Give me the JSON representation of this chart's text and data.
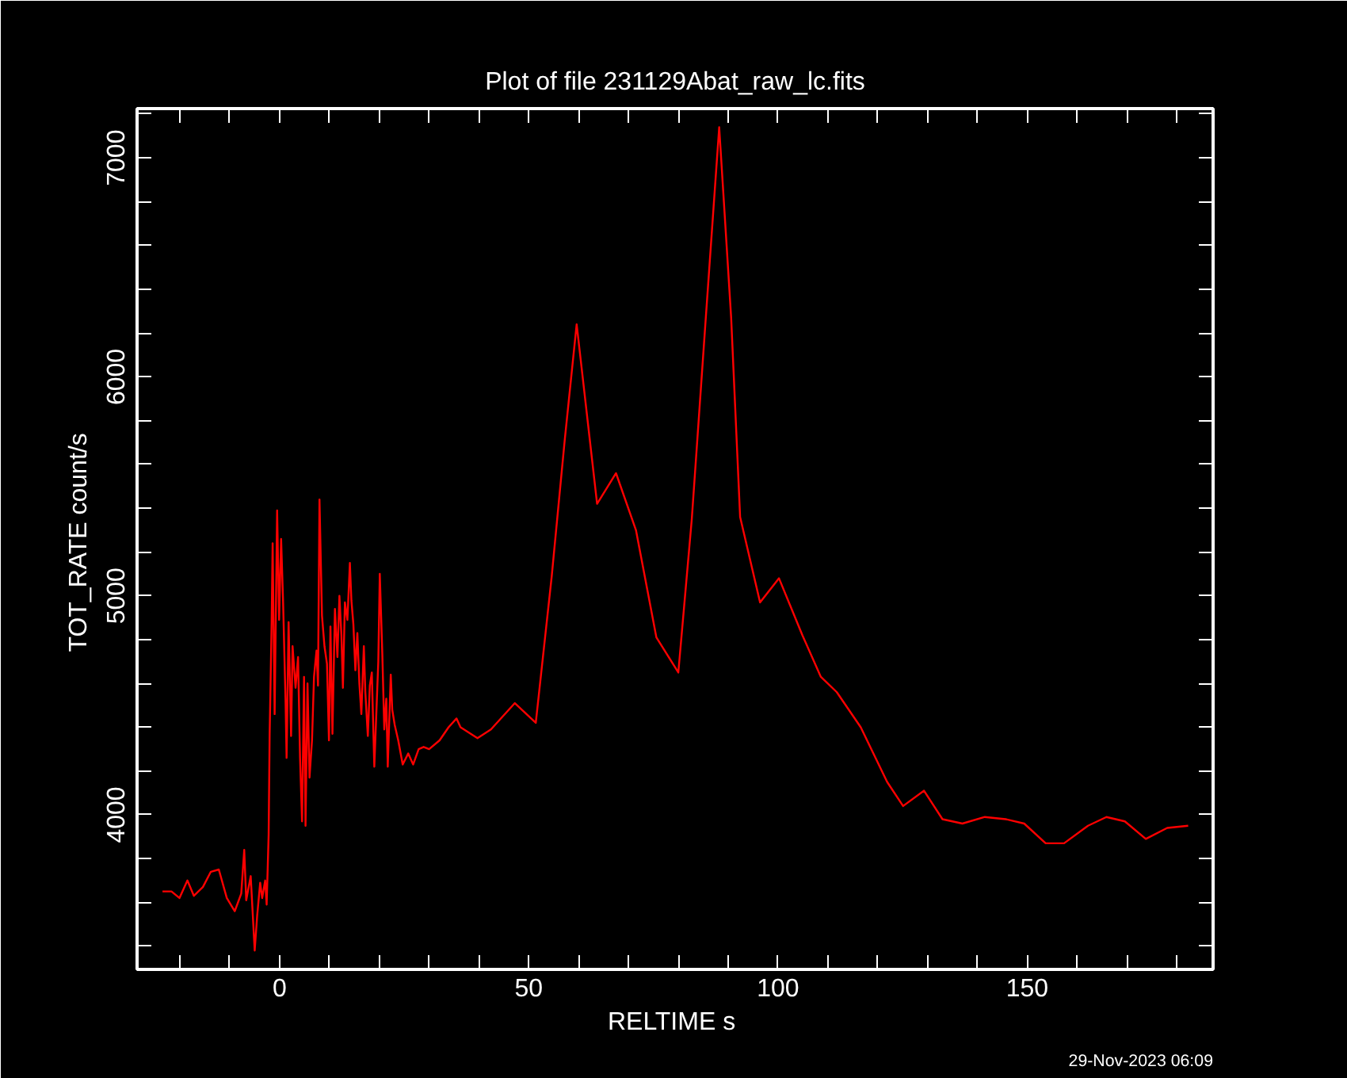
{
  "chart_data": {
    "type": "line",
    "title": "Plot of file 231129Abat_raw_lc.fits",
    "xlabel": "RELTIME  s",
    "ylabel": "TOT_RATE  count/s",
    "annotations": [
      "29-Nov-2023 06:09"
    ],
    "xlim": [
      -28.6,
      187.3
    ],
    "ylim": [
      3294,
      7225
    ],
    "xticks": [
      0,
      50,
      100,
      150,
      {
        "value": -20,
        "label": null
      },
      {
        "value": -10,
        "label": null
      },
      {
        "value": 10,
        "label": null
      },
      {
        "value": 20,
        "label": null
      },
      {
        "value": 30,
        "label": null
      },
      {
        "value": 40,
        "label": null
      },
      {
        "value": 60,
        "label": null
      },
      {
        "value": 70,
        "label": null
      },
      {
        "value": 80,
        "label": null
      },
      {
        "value": 90,
        "label": null
      },
      {
        "value": 110,
        "label": null
      },
      {
        "value": 120,
        "label": null
      },
      {
        "value": 130,
        "label": null
      },
      {
        "value": 140,
        "label": null
      },
      {
        "value": 160,
        "label": null
      },
      {
        "value": 170,
        "label": null
      },
      {
        "value": 180,
        "label": null
      }
    ],
    "yticks": [
      4000,
      5000,
      6000,
      7000,
      {
        "value": 3400,
        "label": null
      },
      {
        "value": 3600,
        "label": null
      },
      {
        "value": 3800,
        "label": null
      },
      {
        "value": 4200,
        "label": null
      },
      {
        "value": 4400,
        "label": null
      },
      {
        "value": 4600,
        "label": null
      },
      {
        "value": 4800,
        "label": null
      },
      {
        "value": 5200,
        "label": null
      },
      {
        "value": 5400,
        "label": null
      },
      {
        "value": 5600,
        "label": null
      },
      {
        "value": 5800,
        "label": null
      },
      {
        "value": 6200,
        "label": null
      },
      {
        "value": 6400,
        "label": null
      },
      {
        "value": 6600,
        "label": null
      },
      {
        "value": 6800,
        "label": null
      },
      {
        "value": 7200,
        "label": null
      }
    ],
    "grid": false,
    "marker": "none",
    "line_style": "solid",
    "series": [
      {
        "color": "#ff0000",
        "x": [
          -23.5,
          -21.7,
          -20.1,
          -18.5,
          -17.2,
          -15.4,
          -13.8,
          -12.2,
          -10.6,
          -9.0,
          -7.7,
          -7.1,
          -6.7,
          -5.8,
          -5.0,
          -4.5,
          -3.9,
          -3.5,
          -2.9,
          -2.6,
          -2.2,
          -2.0,
          -1.6,
          -1.4,
          -1.0,
          -0.5,
          -0.1,
          0.3,
          0.7,
          1.2,
          1.4,
          1.8,
          2.3,
          2.6,
          3.2,
          3.7,
          4.1,
          4.5,
          4.9,
          5.2,
          5.6,
          6.0,
          6.5,
          6.9,
          7.4,
          7.7,
          8.0,
          8.5,
          9.0,
          9.5,
          9.9,
          10.2,
          10.6,
          11.1,
          11.6,
          12.0,
          12.4,
          12.7,
          13.1,
          13.6,
          14.1,
          14.4,
          14.8,
          15.2,
          15.6,
          16.0,
          16.4,
          16.9,
          17.2,
          17.7,
          18.1,
          18.5,
          19.0,
          19.4,
          19.8,
          20.1,
          20.6,
          21.0,
          21.4,
          21.7,
          22.3,
          22.6,
          23.1,
          23.8,
          24.7,
          25.8,
          26.8,
          27.9,
          28.9,
          30.0,
          32.1,
          33.9,
          35.5,
          36.3,
          39.7,
          42.4,
          47.2,
          51.4,
          54.6,
          57.2,
          59.6,
          62.1,
          63.7,
          67.5,
          71.5,
          75.6,
          80.0,
          82.7,
          85.3,
          88.2,
          90.6,
          92.4,
          96.4,
          100.2,
          104.9,
          108.6,
          111.8,
          116.6,
          121.9,
          125.1,
          129.3,
          133.0,
          137.0,
          141.5,
          145.7,
          149.4,
          153.7,
          157.4,
          162.2,
          165.9,
          169.6,
          173.8,
          178.1,
          182.3
        ],
        "values": [
          3650,
          3650,
          3620,
          3700,
          3630,
          3670,
          3740,
          3750,
          3620,
          3560,
          3640,
          3840,
          3610,
          3720,
          3380,
          3540,
          3690,
          3620,
          3700,
          3590,
          3910,
          4370,
          4880,
          5240,
          4460,
          5390,
          4890,
          5260,
          4970,
          4510,
          4260,
          4880,
          4360,
          4770,
          4580,
          4720,
          4260,
          3970,
          4630,
          3950,
          4600,
          4170,
          4340,
          4630,
          4750,
          4590,
          5440,
          4910,
          4770,
          4690,
          4340,
          4860,
          4370,
          4940,
          4720,
          5000,
          4820,
          4580,
          4970,
          4890,
          5150,
          4980,
          4870,
          4660,
          4830,
          4600,
          4460,
          4770,
          4560,
          4360,
          4590,
          4650,
          4220,
          4460,
          4700,
          5100,
          4740,
          4390,
          4530,
          4220,
          4640,
          4480,
          4410,
          4340,
          4230,
          4280,
          4230,
          4300,
          4310,
          4300,
          4340,
          4400,
          4440,
          4400,
          4350,
          4390,
          4510,
          4420,
          5090,
          5710,
          6240,
          5740,
          5420,
          5560,
          5300,
          4810,
          4650,
          5350,
          6200,
          7140,
          6270,
          5360,
          4970,
          5080,
          4820,
          4630,
          4560,
          4400,
          4150,
          4040,
          4110,
          3980,
          3960,
          3990,
          3980,
          3960,
          3870,
          3870,
          3950,
          3990,
          3970,
          3890,
          3940,
          3950
        ]
      }
    ]
  }
}
